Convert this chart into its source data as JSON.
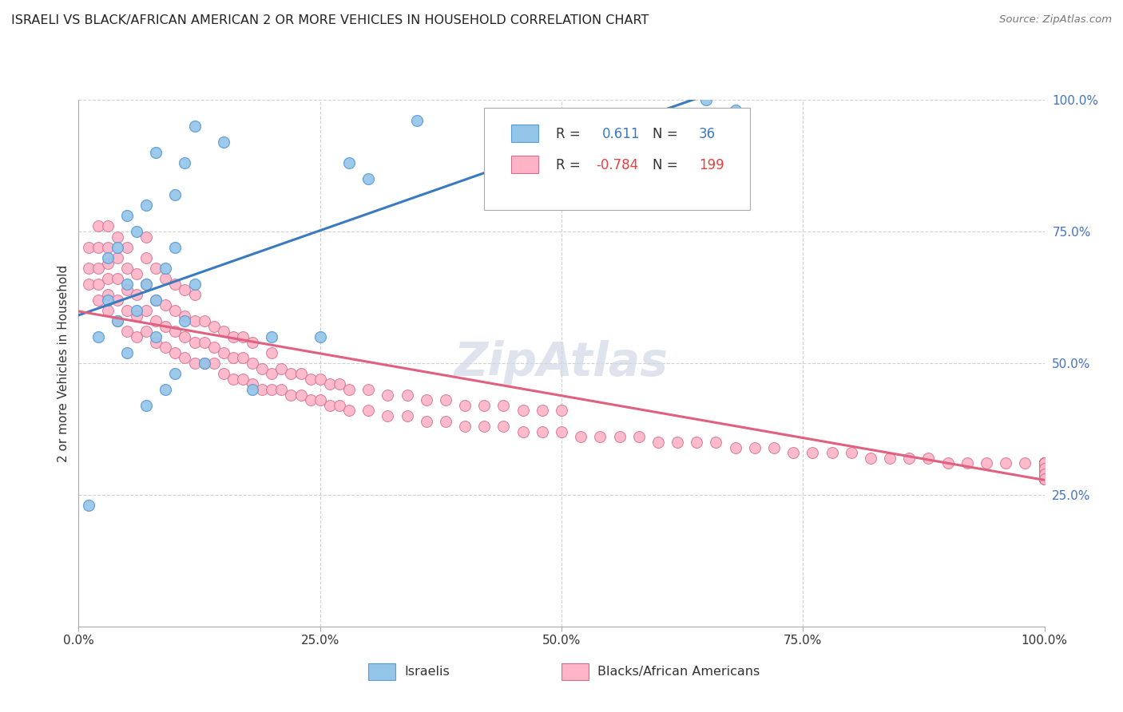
{
  "title": "ISRAELI VS BLACK/AFRICAN AMERICAN 2 OR MORE VEHICLES IN HOUSEHOLD CORRELATION CHART",
  "source": "Source: ZipAtlas.com",
  "ylabel": "2 or more Vehicles in Household",
  "xlim": [
    0,
    100
  ],
  "ylim": [
    0,
    100
  ],
  "blue_R": 0.611,
  "blue_N": 36,
  "pink_R": -0.784,
  "pink_N": 199,
  "blue_color": "#92c5e8",
  "pink_color": "#ffb3c6",
  "blue_line_color": "#3a7abf",
  "pink_line_color": "#e06080",
  "blue_edge_color": "#5b9bd5",
  "pink_edge_color": "#d07090",
  "right_ytick_labels": [
    "25.0%",
    "50.0%",
    "75.0%",
    "100.0%"
  ],
  "right_ytick_values": [
    25,
    50,
    75,
    100
  ],
  "bottom_xtick_labels": [
    "0.0%",
    "25.0%",
    "50.0%",
    "75.0%",
    "100.0%"
  ],
  "bottom_xtick_values": [
    0,
    25,
    50,
    75,
    100
  ],
  "legend_R_color": "#3a7abf",
  "legend_pink_R_color": "#e84040",
  "grid_color": "#d0d0d0",
  "watermark_text": "ZipAtlas",
  "watermark_color": "#d0d8e8",
  "israelis_x": [
    1,
    2,
    3,
    3,
    4,
    4,
    5,
    5,
    5,
    6,
    6,
    7,
    7,
    7,
    8,
    8,
    8,
    9,
    9,
    10,
    10,
    10,
    11,
    11,
    12,
    12,
    13,
    15,
    18,
    20,
    25,
    28,
    30,
    35,
    65,
    68
  ],
  "israelis_y": [
    23,
    55,
    62,
    70,
    58,
    72,
    52,
    65,
    78,
    60,
    75,
    42,
    65,
    80,
    55,
    90,
    62,
    45,
    68,
    48,
    72,
    82,
    58,
    88,
    65,
    95,
    50,
    92,
    45,
    55,
    55,
    88,
    85,
    96,
    100,
    98
  ],
  "blacks_x": [
    1,
    1,
    1,
    2,
    2,
    2,
    2,
    2,
    3,
    3,
    3,
    3,
    3,
    3,
    4,
    4,
    4,
    4,
    4,
    5,
    5,
    5,
    5,
    5,
    6,
    6,
    6,
    6,
    7,
    7,
    7,
    7,
    7,
    8,
    8,
    8,
    8,
    9,
    9,
    9,
    9,
    10,
    10,
    10,
    10,
    11,
    11,
    11,
    11,
    12,
    12,
    12,
    12,
    13,
    13,
    13,
    14,
    14,
    14,
    15,
    15,
    15,
    16,
    16,
    16,
    17,
    17,
    17,
    18,
    18,
    18,
    19,
    19,
    20,
    20,
    20,
    21,
    21,
    22,
    22,
    23,
    23,
    24,
    24,
    25,
    25,
    26,
    26,
    27,
    27,
    28,
    28,
    30,
    30,
    32,
    32,
    34,
    34,
    36,
    36,
    38,
    38,
    40,
    40,
    42,
    42,
    44,
    44,
    46,
    46,
    48,
    48,
    50,
    50,
    52,
    54,
    56,
    58,
    60,
    62,
    64,
    66,
    68,
    70,
    72,
    74,
    76,
    78,
    80,
    82,
    84,
    86,
    88,
    90,
    92,
    94,
    96,
    98,
    100,
    100,
    100,
    100,
    100,
    100,
    100,
    100,
    100,
    100,
    100,
    100,
    100,
    100,
    100,
    100,
    100,
    100,
    100,
    100,
    100,
    100,
    100,
    100,
    100,
    100,
    100,
    100,
    100,
    100,
    100,
    100,
    100,
    100,
    100,
    100,
    100,
    100,
    100,
    100,
    100,
    100,
    100,
    100,
    100,
    100,
    100,
    100,
    100,
    100,
    100,
    100,
    100,
    100,
    100,
    100,
    100,
    100,
    100,
    100,
    100
  ],
  "blacks_y": [
    65,
    68,
    72,
    62,
    65,
    68,
    72,
    76,
    60,
    63,
    66,
    69,
    72,
    76,
    58,
    62,
    66,
    70,
    74,
    56,
    60,
    64,
    68,
    72,
    55,
    59,
    63,
    67,
    56,
    60,
    65,
    70,
    74,
    54,
    58,
    62,
    68,
    53,
    57,
    61,
    66,
    52,
    56,
    60,
    65,
    51,
    55,
    59,
    64,
    50,
    54,
    58,
    63,
    50,
    54,
    58,
    50,
    53,
    57,
    48,
    52,
    56,
    47,
    51,
    55,
    47,
    51,
    55,
    46,
    50,
    54,
    45,
    49,
    45,
    48,
    52,
    45,
    49,
    44,
    48,
    44,
    48,
    43,
    47,
    43,
    47,
    42,
    46,
    42,
    46,
    41,
    45,
    41,
    45,
    40,
    44,
    40,
    44,
    39,
    43,
    39,
    43,
    38,
    42,
    38,
    42,
    38,
    42,
    37,
    41,
    37,
    41,
    37,
    41,
    36,
    36,
    36,
    36,
    35,
    35,
    35,
    35,
    34,
    34,
    34,
    33,
    33,
    33,
    33,
    32,
    32,
    32,
    32,
    31,
    31,
    31,
    31,
    31,
    30,
    31,
    30,
    29,
    31,
    30,
    31,
    30,
    29,
    31,
    30,
    29,
    31,
    30,
    29,
    31,
    30,
    29,
    28,
    31,
    30,
    29,
    31,
    30,
    29,
    31,
    30,
    29,
    28,
    31,
    30,
    29,
    31,
    30,
    29,
    31,
    30,
    29,
    28,
    31,
    30,
    29,
    31,
    30,
    29,
    31,
    30,
    29,
    28,
    31,
    30,
    29,
    28,
    31,
    30,
    29,
    28,
    31,
    30,
    29,
    28
  ]
}
